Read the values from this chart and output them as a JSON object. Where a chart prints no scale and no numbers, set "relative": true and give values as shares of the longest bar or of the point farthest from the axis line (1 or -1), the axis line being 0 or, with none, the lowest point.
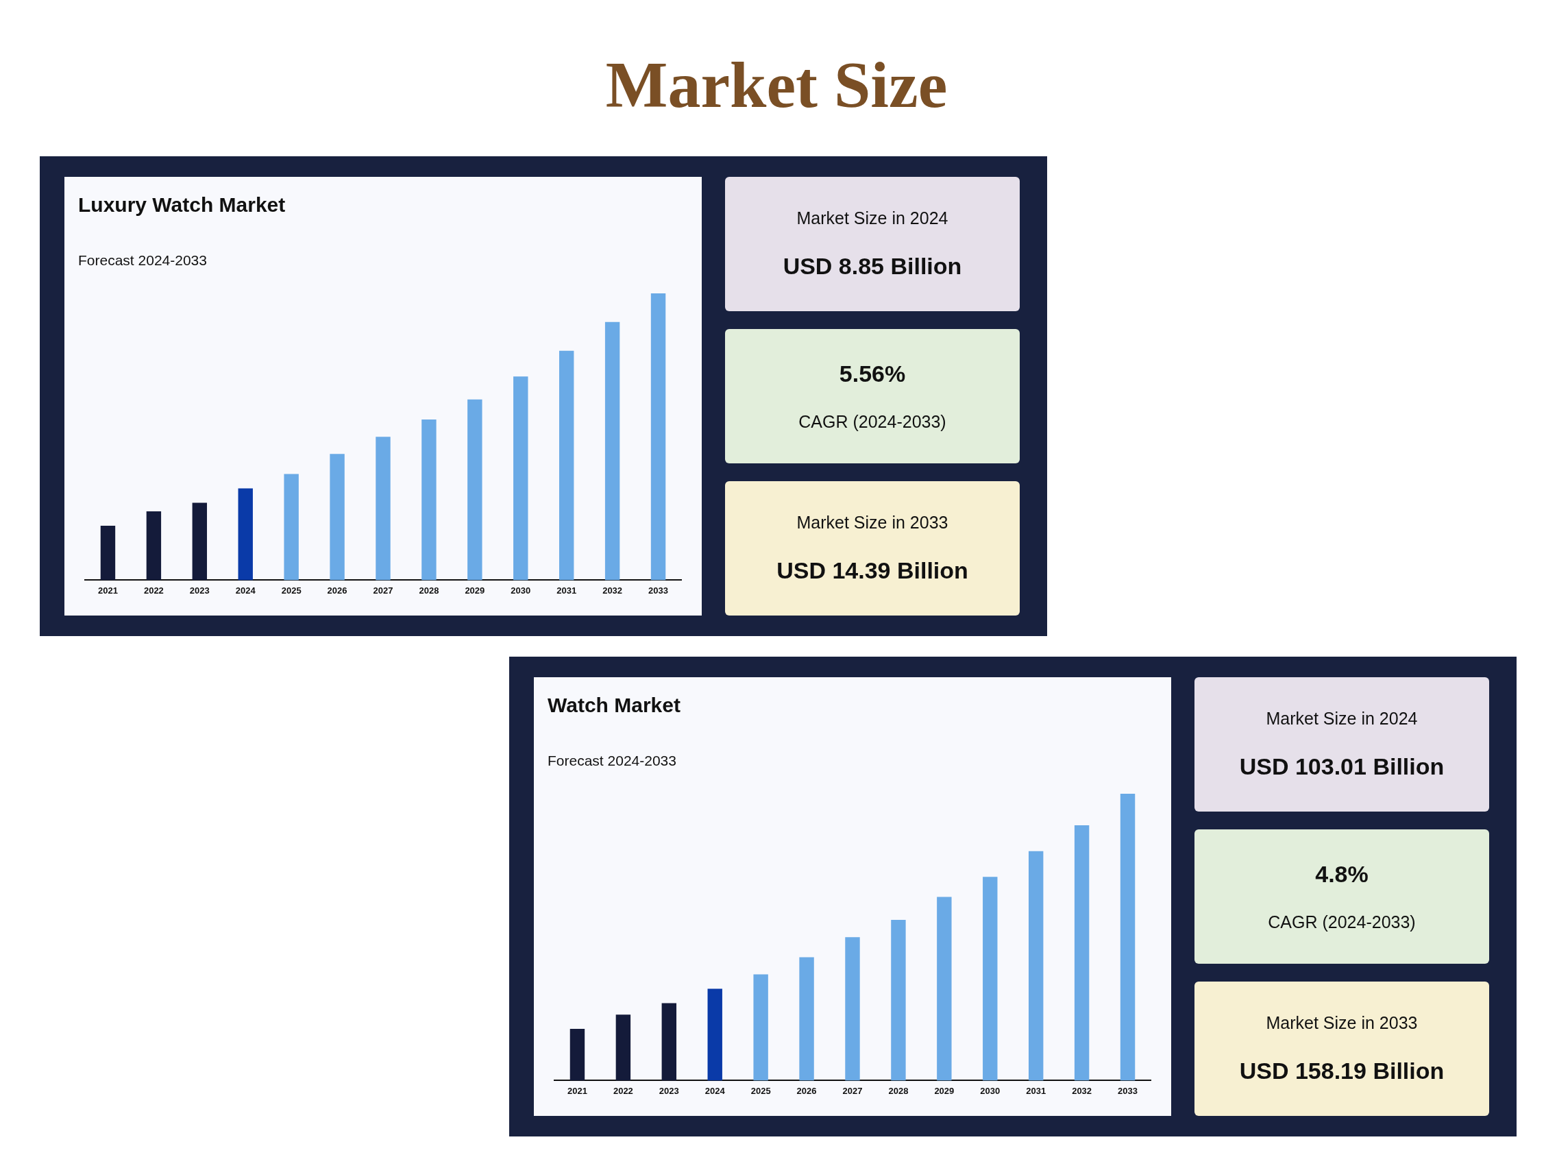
{
  "chart_data": [
    {
      "type": "other",
      "title": "Market Size"
    },
    {
      "type": "bar",
      "title": "Luxury Watch Market",
      "subtitle": "Forecast 2024-2033",
      "relative": true,
      "grid": false,
      "legend": false,
      "categories": [
        "2021",
        "2022",
        "2023",
        "2024",
        "2025",
        "2026",
        "2027",
        "2028",
        "2029",
        "2030",
        "2031",
        "2032",
        "2033"
      ],
      "values": [
        0.19,
        0.24,
        0.27,
        0.32,
        0.37,
        0.44,
        0.5,
        0.56,
        0.63,
        0.71,
        0.8,
        0.9,
        1
      ],
      "colors": [
        "#141b3a",
        "#141b3a",
        "#141b3a",
        "#0a3aa8",
        "#6aaae6",
        "#6aaae6",
        "#6aaae6",
        "#6aaae6",
        "#6aaae6",
        "#6aaae6",
        "#6aaae6",
        "#6aaae6",
        "#6aaae6"
      ]
    },
    {
      "type": "other",
      "annotations": [
        "Market Size in 2024",
        "USD 8.85 Billion",
        "5.56%",
        "CAGR (2024-2033)",
        "Market Size in 2033",
        "USD 14.39 Billion"
      ]
    },
    {
      "type": "bar",
      "title": "Watch Market",
      "subtitle": "Forecast 2024-2033",
      "relative": true,
      "grid": false,
      "legend": false,
      "categories": [
        "2021",
        "2022",
        "2023",
        "2024",
        "2025",
        "2026",
        "2027",
        "2028",
        "2029",
        "2030",
        "2031",
        "2032",
        "2033"
      ],
      "values": [
        0.18,
        0.23,
        0.27,
        0.32,
        0.37,
        0.43,
        0.5,
        0.56,
        0.64,
        0.71,
        0.8,
        0.89,
        1
      ],
      "colors": [
        "#141b3a",
        "#141b3a",
        "#141b3a",
        "#0a3aa8",
        "#6aaae6",
        "#6aaae6",
        "#6aaae6",
        "#6aaae6",
        "#6aaae6",
        "#6aaae6",
        "#6aaae6",
        "#6aaae6",
        "#6aaae6"
      ]
    },
    {
      "type": "other",
      "annotations": [
        "Market Size in 2024",
        "USD 103.01 Billion",
        "4.8%",
        "CAGR (2024-2033)",
        "Market Size in 2033",
        "USD 158.19 Billion"
      ]
    }
  ]
}
